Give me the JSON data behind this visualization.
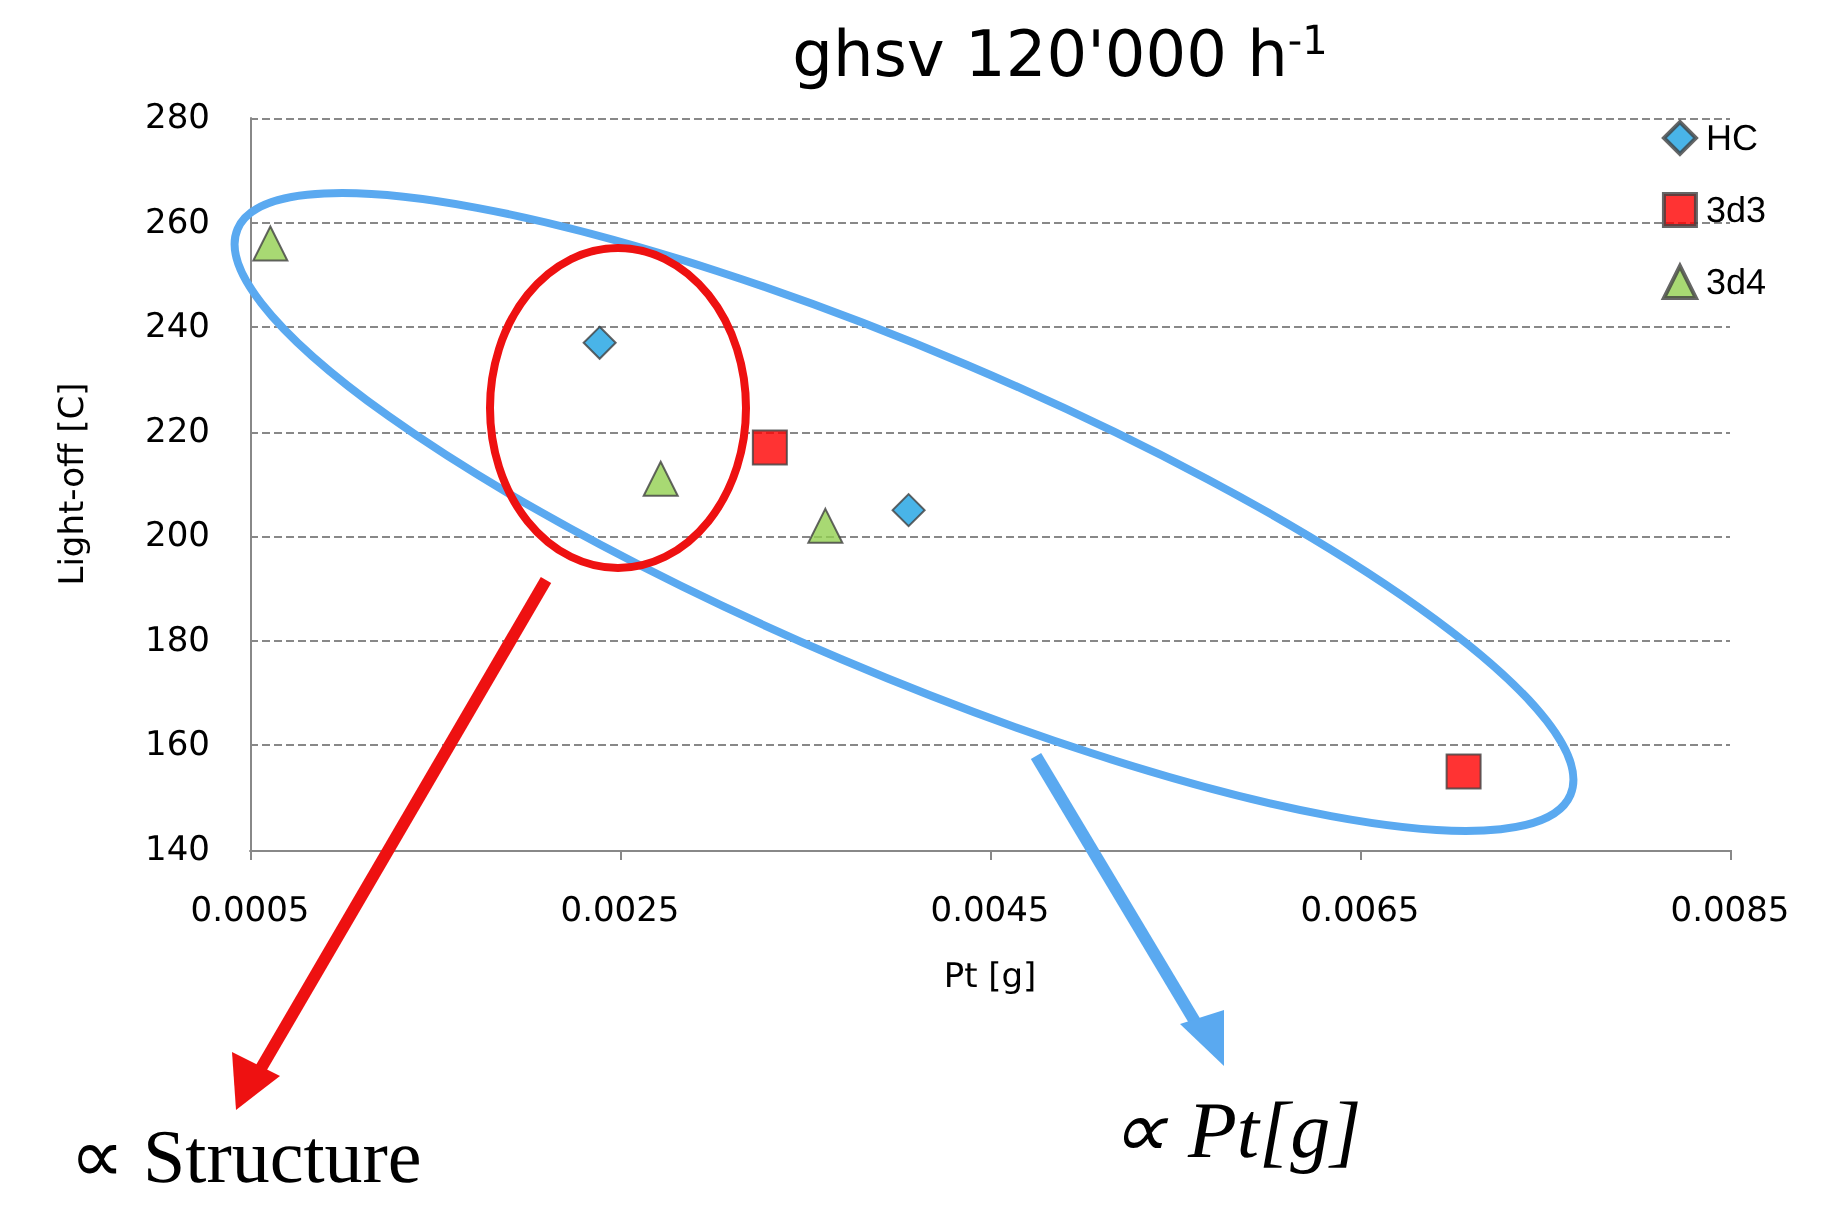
{
  "chart_data": {
    "type": "scatter",
    "title": "ghsv 120'000 h$^{-1}$",
    "xlabel": "Pt [g]",
    "ylabel": "Light-off [C]",
    "xlim": [
      0.0005,
      0.0085
    ],
    "xticks": [
      0.0005,
      0.0025,
      0.0045,
      0.0065,
      0.0085
    ],
    "ylim": [
      140,
      280
    ],
    "yticks": [
      140,
      160,
      180,
      200,
      220,
      240,
      260,
      280
    ],
    "grid": "y",
    "legend": "top right",
    "series": [
      {
        "name": "HC",
        "color": "#1ba1e2",
        "marker": "diamond",
        "x": [
          0.00239,
          0.00406
        ],
        "values": [
          237,
          205
        ]
      },
      {
        "name": "3d3",
        "color": "#ff0000",
        "marker": "square",
        "x": [
          0.00331,
          0.00706
        ],
        "values": [
          217,
          155
        ]
      },
      {
        "name": "3d4",
        "color": "#92d050",
        "marker": "triangle",
        "x": [
          0.00061,
          0.00272,
          0.00361
        ],
        "values": [
          256,
          211,
          202
        ]
      }
    ],
    "annotations": [
      "∝ Structure",
      "∝ Pt[g]"
    ]
  }
}
